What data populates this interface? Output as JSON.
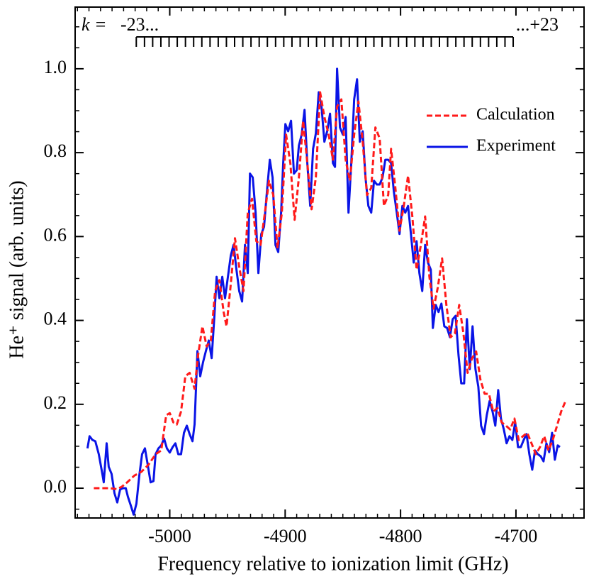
{
  "chart_data": {
    "type": "line",
    "xlabel": "Frequency relative to ionization limit (GHz)",
    "ylabel": "He⁺ signal (arb. units)",
    "xlim": [
      -5082,
      -4641
    ],
    "ylim": [
      -0.071,
      1.147
    ],
    "xticks": [
      -5000,
      -4900,
      -4800,
      -4700
    ],
    "yticks": [
      {
        "value": 0,
        "label": "0.0"
      },
      0.2,
      0.4,
      0.6,
      0.8,
      {
        "value": 1,
        "label": "1.0"
      }
    ],
    "xminorticks": [
      -5080,
      -5070,
      -5060,
      -5050,
      -5040,
      -5030,
      -5020,
      -5010,
      -4990,
      -4980,
      -4970,
      -4960,
      -4950,
      -4940,
      -4930,
      -4920,
      -4910,
      -4890,
      -4880,
      -4870,
      -4860,
      -4850,
      -4840,
      -4830,
      -4820,
      -4810,
      -4790,
      -4780,
      -4770,
      -4760,
      -4750,
      -4740,
      -4730,
      -4720,
      -4710,
      -4690,
      -4680,
      -4670,
      -4660,
      -4650
    ],
    "yminorticks": [
      -0.05,
      0.05,
      0.1,
      0.15,
      0.25,
      0.3,
      0.35,
      0.45,
      0.5,
      0.55,
      0.65,
      0.7,
      0.75,
      0.85,
      0.9,
      0.95,
      1.05,
      1.1
    ],
    "legend": "upper right",
    "k_scale": {
      "label": "k =",
      "start_label": "-23...",
      "end_label": "...+23",
      "x": [
        -5029.0,
        -5021.9,
        -5014.8,
        -5007.7,
        -5000.6,
        -4993.5,
        -4986.4,
        -4979.3,
        -4972.2,
        -4965.1,
        -4958.0,
        -4950.9,
        -4943.8,
        -4936.7,
        -4929.6,
        -4922.5,
        -4915.4,
        -4908.3,
        -4901.2,
        -4894.1,
        -4887.0,
        -4879.9,
        -4872.8,
        -4865.7,
        -4858.6,
        -4851.5,
        -4844.4,
        -4837.3,
        -4830.2,
        -4823.1,
        -4816.0,
        -4808.9,
        -4801.8,
        -4794.7,
        -4787.6,
        -4780.5,
        -4773.4,
        -4766.3,
        -4759.2,
        -4752.1,
        -4745.0,
        -4737.9,
        -4730.8,
        -4723.7,
        -4716.6,
        -4709.5,
        -4702.4
      ]
    },
    "series": [
      {
        "name": "Calculation",
        "color": "#ff1a1a",
        "style": "dashed",
        "x": [
          -5065.8,
          -5058.4,
          -5052.2,
          -5046.1,
          -5041.8,
          -5036.9,
          -5030.7,
          -5024.6,
          -5018.4,
          -5012.3,
          -5007.4,
          -5003.1,
          -5000.0,
          -4996.9,
          -4993.9,
          -4990.2,
          -4986.5,
          -4982.8,
          -4978.5,
          -4975.4,
          -4971.7,
          -4968.0,
          -4964.4,
          -4960.7,
          -4957.0,
          -4953.3,
          -4950.8,
          -4947.1,
          -4943.5,
          -4939.8,
          -4936.1,
          -4932.4,
          -4928.7,
          -4925.0,
          -4921.3,
          -4917.6,
          -4914.0,
          -4910.3,
          -4906.6,
          -4902.9,
          -4899.2,
          -4895.5,
          -4891.8,
          -4888.1,
          -4884.4,
          -4880.8,
          -4877.1,
          -4873.4,
          -4869.7,
          -4866.0,
          -4862.3,
          -4858.6,
          -4855.0,
          -4851.3,
          -4847.6,
          -4843.9,
          -4840.2,
          -4836.5,
          -4832.8,
          -4829.1,
          -4825.4,
          -4821.8,
          -4818.1,
          -4814.4,
          -4810.7,
          -4808.2,
          -4804.5,
          -4800.9,
          -4797.2,
          -4793.5,
          -4789.8,
          -4786.1,
          -4782.4,
          -4778.7,
          -4775.0,
          -4771.4,
          -4767.7,
          -4764.0,
          -4760.3,
          -4756.6,
          -4752.9,
          -4749.2,
          -4745.5,
          -4741.9,
          -4738.2,
          -4734.5,
          -4730.8,
          -4727.1,
          -4723.4,
          -4719.7,
          -4716.0,
          -4712.4,
          -4708.7,
          -4705.0,
          -4701.3,
          -4697.6,
          -4693.9,
          -4690.2,
          -4686.5,
          -4682.8,
          -4679.2,
          -4675.5,
          -4671.8,
          -4668.1,
          -4664.4,
          -4660.8,
          -4657.0
        ],
        "values": [
          0,
          0,
          0,
          -0.002,
          0.003,
          0.014,
          0.03,
          0.039,
          0.056,
          0.081,
          0.09,
          0.174,
          0.179,
          0.157,
          0.152,
          0.183,
          0.267,
          0.275,
          0.237,
          0.318,
          0.386,
          0.338,
          0.352,
          0.47,
          0.496,
          0.42,
          0.386,
          0.487,
          0.596,
          0.528,
          0.47,
          0.656,
          0.69,
          0.589,
          0.58,
          0.656,
          0.733,
          0.699,
          0.572,
          0.656,
          0.843,
          0.775,
          0.64,
          0.741,
          0.876,
          0.775,
          0.665,
          0.741,
          0.944,
          0.885,
          0.843,
          0.783,
          0.91,
          0.927,
          0.783,
          0.733,
          0.843,
          0.922,
          0.826,
          0.699,
          0.716,
          0.86,
          0.834,
          0.673,
          0.699,
          0.809,
          0.716,
          0.614,
          0.673,
          0.745,
          0.648,
          0.521,
          0.58,
          0.648,
          0.504,
          0.428,
          0.479,
          0.548,
          0.437,
          0.36,
          0.369,
          0.437,
          0.369,
          0.275,
          0.309,
          0.326,
          0.259,
          0.225,
          0.225,
          0.183,
          0.191,
          0.157,
          0.149,
          0.14,
          0.166,
          0.115,
          0.124,
          0.132,
          0.107,
          0.081,
          0.098,
          0.124,
          0.09,
          0.115,
          0.149,
          0.183,
          0.208
        ]
      },
      {
        "name": "Experiment",
        "color": "#0a14e6",
        "style": "solid",
        "x": [
          -5071.3,
          -5069.5,
          -5067.0,
          -5064.5,
          -5061.5,
          -5058.4,
          -5057.2,
          -5054.7,
          -5052.9,
          -5050.4,
          -5047.9,
          -5045.5,
          -5043.0,
          -5040.6,
          -5038.1,
          -5036.3,
          -5033.8,
          -5031.3,
          -5028.9,
          -5026.4,
          -5024.0,
          -5021.5,
          -5019.1,
          -5016.6,
          -5014.1,
          -5012.3,
          -5009.8,
          -5007.4,
          -5004.9,
          -5002.5,
          -5000.0,
          -4997.5,
          -4995.1,
          -4992.6,
          -4990.2,
          -4987.7,
          -4985.2,
          -4982.8,
          -4980.3,
          -4978.5,
          -4976.0,
          -4973.6,
          -4971.1,
          -4968.7,
          -4966.2,
          -4963.7,
          -4961.3,
          -4959.4,
          -4957.0,
          -4954.5,
          -4952.1,
          -4949.6,
          -4947.1,
          -4944.7,
          -4942.2,
          -4939.8,
          -4937.3,
          -4934.8,
          -4932.4,
          -4930.5,
          -4928.1,
          -4925.6,
          -4923.2,
          -4920.7,
          -4918.3,
          -4915.8,
          -4913.3,
          -4910.9,
          -4908.4,
          -4906.0,
          -4903.5,
          -4901.7,
          -4899.8,
          -4897.4,
          -4894.9,
          -4892.4,
          -4890.0,
          -4888.1,
          -4885.7,
          -4883.2,
          -4880.8,
          -4878.3,
          -4875.8,
          -4873.4,
          -4870.9,
          -4868.5,
          -4866.0,
          -4863.6,
          -4861.1,
          -4858.6,
          -4856.8,
          -4855.0,
          -4852.5,
          -4850.0,
          -4847.6,
          -4845.1,
          -4842.7,
          -4840.2,
          -4837.7,
          -4835.3,
          -4832.8,
          -4830.4,
          -4827.9,
          -4825.4,
          -4823.0,
          -4820.5,
          -4818.1,
          -4815.6,
          -4813.2,
          -4810.7,
          -4808.2,
          -4805.8,
          -4803.3,
          -4800.9,
          -4798.4,
          -4795.9,
          -4793.5,
          -4791.0,
          -4788.6,
          -4786.1,
          -4783.7,
          -4781.2,
          -4778.7,
          -4776.3,
          -4773.8,
          -4772.0,
          -4769.5,
          -4767.1,
          -4764.6,
          -4762.1,
          -4759.7,
          -4757.2,
          -4754.8,
          -4752.3,
          -4749.8,
          -4747.4,
          -4744.9,
          -4742.5,
          -4740.0,
          -4737.6,
          -4735.1,
          -4732.6,
          -4730.2,
          -4727.7,
          -4725.3,
          -4722.8,
          -4720.3,
          -4717.9,
          -4715.4,
          -4713.0,
          -4710.5,
          -4708.1,
          -4705.6,
          -4703.1,
          -4700.7,
          -4698.2,
          -4695.8,
          -4693.3,
          -4690.8,
          -4688.4,
          -4685.9,
          -4683.5,
          -4681.0,
          -4678.5,
          -4676.1,
          -4673.6,
          -4671.2,
          -4668.7,
          -4666.3,
          -4663.8,
          -4661.9
        ],
        "values": [
          0.095,
          0.124,
          0.115,
          0.112,
          0.081,
          0.034,
          0.014,
          0.107,
          0.051,
          0.034,
          -0.012,
          -0.034,
          -0.003,
          0,
          0,
          -0.02,
          -0.041,
          -0.063,
          -0.037,
          0.03,
          0.081,
          0.095,
          0.056,
          0.014,
          0.017,
          0.081,
          0.095,
          0.102,
          0.118,
          0.095,
          0.085,
          0.098,
          0.107,
          0.081,
          0.081,
          0.132,
          0.149,
          0.129,
          0.112,
          0.152,
          0.327,
          0.267,
          0.301,
          0.327,
          0.352,
          0.31,
          0.411,
          0.504,
          0.453,
          0.504,
          0.453,
          0.504,
          0.555,
          0.58,
          0.521,
          0.47,
          0.445,
          0.58,
          0.513,
          0.75,
          0.741,
          0.657,
          0.513,
          0.606,
          0.623,
          0.707,
          0.783,
          0.741,
          0.58,
          0.563,
          0.657,
          0.775,
          0.868,
          0.851,
          0.876,
          0.75,
          0.758,
          0.817,
          0.843,
          0.902,
          0.775,
          0.673,
          0.809,
          0.846,
          0.944,
          0.91,
          0.826,
          0.851,
          0.893,
          0.775,
          0.766,
          1,
          0.86,
          0.843,
          0.885,
          0.657,
          0.775,
          0.927,
          0.975,
          0.826,
          0.851,
          0.741,
          0.673,
          0.657,
          0.733,
          0.724,
          0.724,
          0.741,
          0.783,
          0.783,
          0.775,
          0.707,
          0.657,
          0.606,
          0.673,
          0.657,
          0.673,
          0.606,
          0.538,
          0.589,
          0.513,
          0.47,
          0.58,
          0.538,
          0.521,
          0.382,
          0.437,
          0.42,
          0.44,
          0.386,
          0.382,
          0.36,
          0.403,
          0.411,
          0.318,
          0.25,
          0.25,
          0.403,
          0.284,
          0.386,
          0.284,
          0.242,
          0.149,
          0.129,
          0.174,
          0.208,
          0.183,
          0.149,
          0.234,
          0.166,
          0.14,
          0.107,
          0.124,
          0.115,
          0.157,
          0.098,
          0.098,
          0.115,
          0.129,
          0.081,
          0.044,
          0.09,
          0.081,
          0.076,
          0.064,
          0.107,
          0.086,
          0.132,
          0.068,
          0.102,
          0.098
        ]
      }
    ]
  }
}
